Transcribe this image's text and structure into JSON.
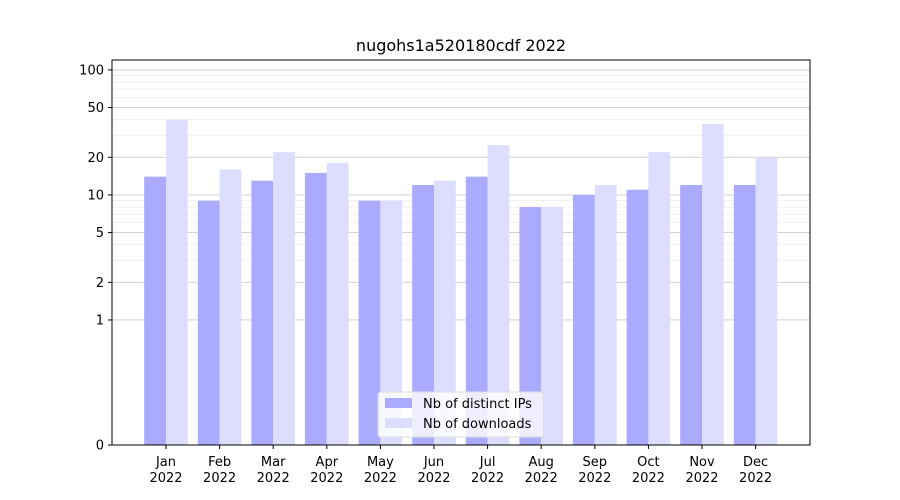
{
  "chart_data": {
    "type": "bar",
    "title": "nugohs1a520180cdf 2022",
    "xlabel": "",
    "ylabel": "",
    "scale": "symlog",
    "ylim": [
      0,
      120
    ],
    "y_ticks": [
      0,
      1,
      2,
      5,
      10,
      20,
      50,
      100
    ],
    "y_tick_labels": [
      "0",
      "1",
      "2",
      "5",
      "10",
      "20",
      "50",
      "100"
    ],
    "categories": [
      "Jan\n2022",
      "Feb\n2022",
      "Mar\n2022",
      "Apr\n2022",
      "May\n2022",
      "Jun\n2022",
      "Jul\n2022",
      "Aug\n2022",
      "Sep\n2022",
      "Oct\n2022",
      "Nov\n2022",
      "Dec\n2022"
    ],
    "series": [
      {
        "name": "Nb of distinct IPs",
        "color": "#aaaaff",
        "values": [
          14,
          9,
          13,
          15,
          9,
          12,
          14,
          8,
          10,
          11,
          12,
          12
        ]
      },
      {
        "name": "Nb of downloads",
        "color": "#ddddff",
        "values": [
          40,
          16,
          22,
          18,
          9,
          13,
          25,
          8,
          12,
          22,
          37,
          20
        ]
      }
    ],
    "grid": true,
    "legend": "bottom-center"
  }
}
